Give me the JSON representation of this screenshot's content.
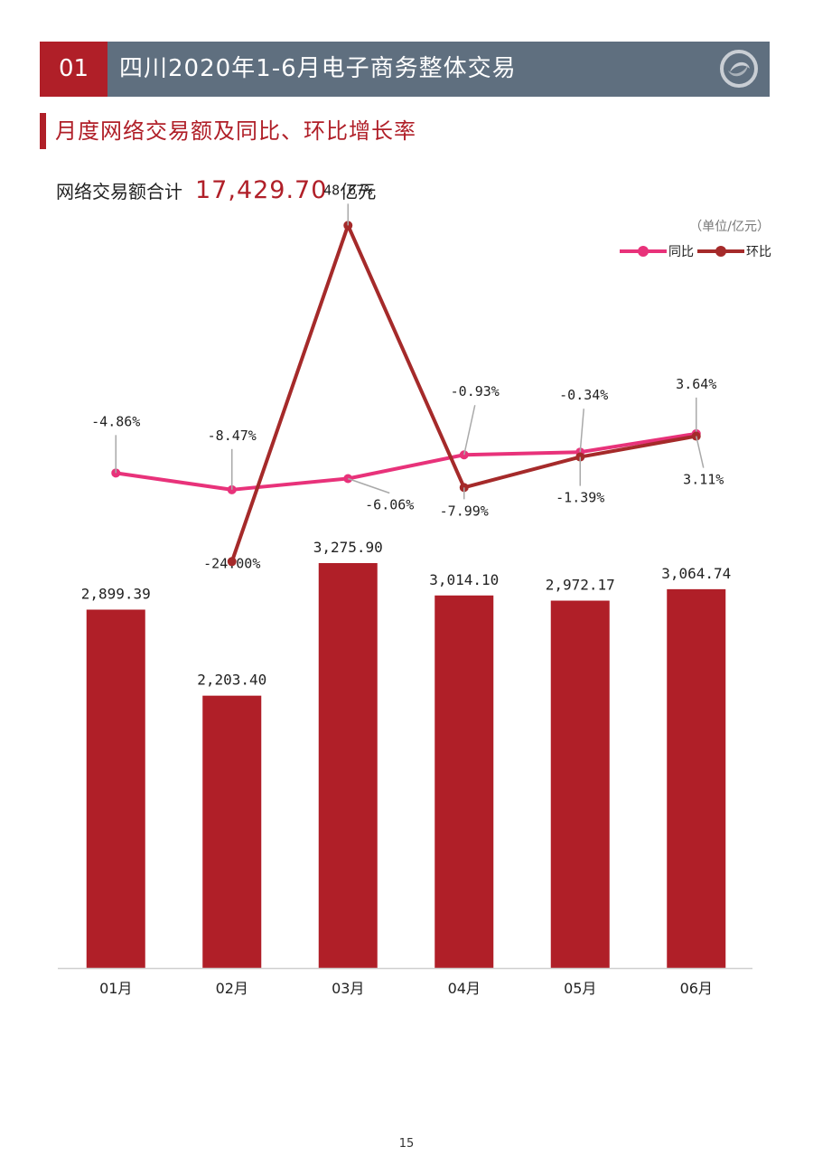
{
  "header": {
    "number": "01",
    "title": "四川2020年1-6月电子商务整体交易"
  },
  "section": {
    "title": "月度网络交易额及同比、环比增长率"
  },
  "summary": {
    "label": "网络交易额合计",
    "value": "17,429.70",
    "unit": "亿元"
  },
  "unit_note": "（单位/亿元）",
  "page_number": "15",
  "colors": {
    "accent": "#b01f28",
    "header_bg": "#5f6f7f",
    "yoy": "#e8327a",
    "mom": "#a52a2a"
  },
  "chart_data": [
    {
      "type": "bar",
      "categories": [
        "01月",
        "02月",
        "03月",
        "04月",
        "05月",
        "06月"
      ],
      "values": [
        2899.39,
        2203.4,
        3275.9,
        3014.1,
        2972.17,
        3064.74
      ],
      "labels": [
        "2,899.39",
        "2,203.40",
        "3,275.90",
        "3,014.10",
        "2,972.17",
        "3,064.74"
      ],
      "ylim": [
        0,
        3400
      ]
    },
    {
      "type": "line",
      "categories": [
        "01月",
        "02月",
        "03月",
        "04月",
        "05月",
        "06月"
      ],
      "legend": "top-right",
      "ylim": [
        -30,
        55
      ],
      "series": [
        {
          "name": "同比",
          "color": "#e8327a",
          "values": [
            -4.86,
            -8.47,
            -6.06,
            -0.93,
            -0.34,
            3.64
          ],
          "labels": [
            "-4.86%",
            "-8.47%",
            "-6.06%",
            "-0.93%",
            "-0.34%",
            "3.64%"
          ]
        },
        {
          "name": "环比",
          "color": "#a52a2a",
          "values": [
            null,
            -24.0,
            48.67,
            -7.99,
            -1.39,
            3.11
          ],
          "labels": [
            "",
            "-24.00%",
            "48.67%",
            "-7.99%",
            "-1.39%",
            "3.11%"
          ]
        }
      ]
    }
  ]
}
